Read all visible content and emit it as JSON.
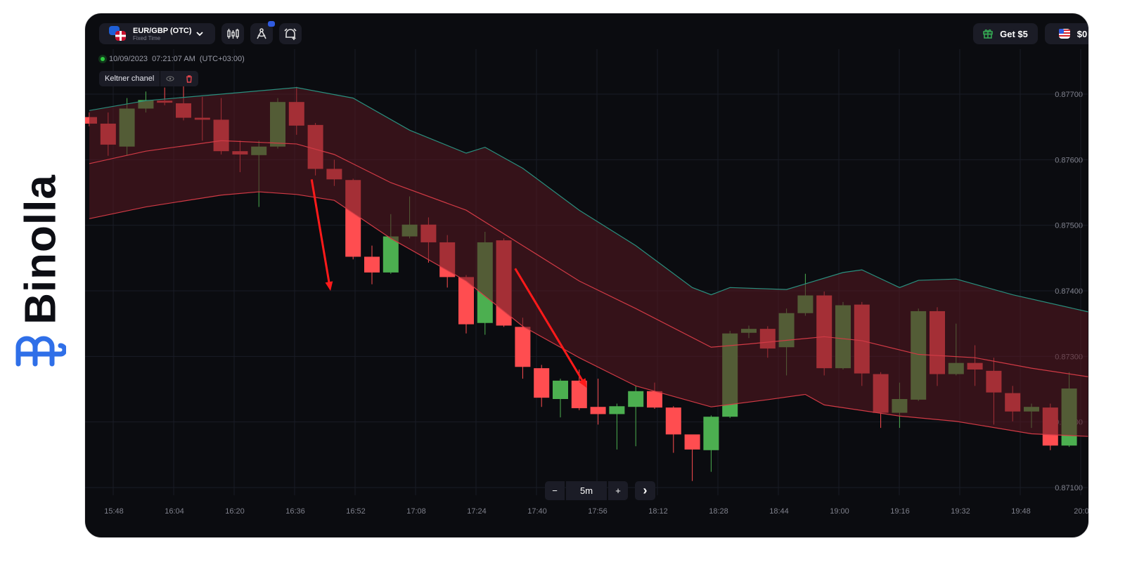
{
  "brand": {
    "name": "Binolla",
    "color": "#2f6fe8"
  },
  "header": {
    "asset_name": "EUR/GBP (OTC)",
    "asset_mode": "Fixed Time",
    "icons": [
      "eu-flag-icon",
      "uk-flag-icon",
      "chevron-down-icon",
      "candlestick-chart-icon",
      "drawing-compass-icon",
      "alarm-add-icon"
    ],
    "bonus_label": "Get $5",
    "balance": "$0"
  },
  "timestamp": {
    "date": "10/09/2023",
    "time": "07:21:07 AM",
    "tz": "(UTC+03:00)"
  },
  "indicator": {
    "label": "Keltner chanel"
  },
  "zoom_controls": {
    "minus": "−",
    "interval": "5m",
    "plus": "+",
    "next": "›"
  },
  "colors": {
    "bg": "#0b0c10",
    "up": "#4caf50",
    "down": "#ff4d50",
    "band_upper": "#2a8f7e",
    "band_lines": "#d03a45",
    "band_fill": "#5a1820",
    "arrow": "#ff1a1a"
  },
  "chart_data": {
    "type": "candlestick",
    "interval": "5m",
    "y_ticks": [
      "0.87700",
      "0.87600",
      "0.87500",
      "0.87400",
      "0.87300",
      "0.87200",
      "0.87100"
    ],
    "x_ticks": [
      "15:48",
      "16:04",
      "16:20",
      "16:36",
      "16:52",
      "17:08",
      "17:24",
      "17:40",
      "17:56",
      "18:12",
      "18:28",
      "18:44",
      "19:00",
      "19:16",
      "19:32",
      "19:48",
      "20:0"
    ],
    "grid": true,
    "start_time": "15:40",
    "candles": [
      [
        0.87665,
        0.87672,
        0.87651,
        0.87655
      ],
      [
        0.87655,
        0.87672,
        0.87606,
        0.87623
      ],
      [
        0.8762,
        0.87694,
        0.87606,
        0.87678
      ],
      [
        0.87678,
        0.87704,
        0.87672,
        0.87691
      ],
      [
        0.8769,
        0.8771,
        0.87683,
        0.87687
      ],
      [
        0.87686,
        0.87713,
        0.8766,
        0.87664
      ],
      [
        0.87664,
        0.87696,
        0.87629,
        0.87661
      ],
      [
        0.87661,
        0.87694,
        0.87608,
        0.87613
      ],
      [
        0.87613,
        0.87629,
        0.87581,
        0.87608
      ],
      [
        0.87607,
        0.87629,
        0.87528,
        0.8762
      ],
      [
        0.8762,
        0.87694,
        0.87617,
        0.87688
      ],
      [
        0.87688,
        0.87711,
        0.87638,
        0.87652
      ],
      [
        0.87653,
        0.87656,
        0.87576,
        0.87586
      ],
      [
        0.87586,
        0.876,
        0.8756,
        0.8757
      ],
      [
        0.87569,
        0.87571,
        0.87448,
        0.87452
      ],
      [
        0.87452,
        0.87469,
        0.8741,
        0.87428
      ],
      [
        0.87428,
        0.87517,
        0.87426,
        0.87483
      ],
      [
        0.87483,
        0.87544,
        0.8748,
        0.87501
      ],
      [
        0.87501,
        0.87512,
        0.87443,
        0.87474
      ],
      [
        0.87474,
        0.87485,
        0.87405,
        0.87421
      ],
      [
        0.87421,
        0.87424,
        0.87335,
        0.87349
      ],
      [
        0.87351,
        0.8749,
        0.87333,
        0.87474
      ],
      [
        0.87477,
        0.8748,
        0.87345,
        0.87347
      ],
      [
        0.87345,
        0.87359,
        0.87266,
        0.87284
      ],
      [
        0.87282,
        0.87287,
        0.87223,
        0.87237
      ],
      [
        0.87235,
        0.87266,
        0.87207,
        0.87263
      ],
      [
        0.87263,
        0.8728,
        0.87218,
        0.87221
      ],
      [
        0.87223,
        0.87266,
        0.87196,
        0.87212
      ],
      [
        0.87212,
        0.87228,
        0.87158,
        0.87224
      ],
      [
        0.87223,
        0.87255,
        0.87163,
        0.87247
      ],
      [
        0.87247,
        0.8726,
        0.8722,
        0.87222
      ],
      [
        0.87222,
        0.87224,
        0.87153,
        0.87181
      ],
      [
        0.87181,
        0.8718,
        0.8711,
        0.87158
      ],
      [
        0.87157,
        0.8721,
        0.87124,
        0.87208
      ],
      [
        0.87208,
        0.87339,
        0.87206,
        0.87335
      ],
      [
        0.87336,
        0.87347,
        0.87328,
        0.87342
      ],
      [
        0.87342,
        0.87346,
        0.87298,
        0.87312
      ],
      [
        0.87314,
        0.87373,
        0.87271,
        0.87366
      ],
      [
        0.87366,
        0.87426,
        0.87362,
        0.87393
      ],
      [
        0.87393,
        0.87399,
        0.87271,
        0.87282
      ],
      [
        0.87282,
        0.87383,
        0.8728,
        0.87378
      ],
      [
        0.87379,
        0.87383,
        0.87255,
        0.87274
      ],
      [
        0.87273,
        0.87276,
        0.87191,
        0.87214
      ],
      [
        0.87214,
        0.8726,
        0.87191,
        0.87235
      ],
      [
        0.87234,
        0.87373,
        0.87232,
        0.87369
      ],
      [
        0.87369,
        0.87375,
        0.87255,
        0.87273
      ],
      [
        0.87273,
        0.8735,
        0.87271,
        0.8729
      ],
      [
        0.8729,
        0.87317,
        0.87255,
        0.8728
      ],
      [
        0.87278,
        0.87298,
        0.87196,
        0.87245
      ],
      [
        0.87244,
        0.87255,
        0.87201,
        0.87216
      ],
      [
        0.87216,
        0.87228,
        0.87191,
        0.87223
      ],
      [
        0.87222,
        0.87228,
        0.87157,
        0.87164
      ],
      [
        0.87164,
        0.87276,
        0.87162,
        0.87251
      ]
    ],
    "keltner": {
      "upper": [
        [
          "15:40",
          0.87675
        ],
        [
          "15:55",
          0.8769
        ],
        [
          "16:15",
          0.877
        ],
        [
          "16:35",
          0.8771
        ],
        [
          "16:50",
          0.87694
        ],
        [
          "17:05",
          0.87645
        ],
        [
          "17:20",
          0.8761
        ],
        [
          "17:25",
          0.87619
        ],
        [
          "17:35",
          0.87587
        ],
        [
          "17:50",
          0.87523
        ],
        [
          "18:05",
          0.87469
        ],
        [
          "18:20",
          0.87405
        ],
        [
          "18:25",
          0.87394
        ],
        [
          "18:30",
          0.87405
        ],
        [
          "18:45",
          0.87402
        ],
        [
          "19:00",
          0.87428
        ],
        [
          "19:05",
          0.87432
        ],
        [
          "19:15",
          0.87405
        ],
        [
          "19:20",
          0.87416
        ],
        [
          "19:30",
          0.87418
        ],
        [
          "19:45",
          0.87394
        ],
        [
          "20:05",
          0.87368
        ]
      ],
      "middle": [
        [
          "15:40",
          0.87594
        ],
        [
          "15:55",
          0.87613
        ],
        [
          "16:15",
          0.87629
        ],
        [
          "16:35",
          0.87624
        ],
        [
          "16:45",
          0.87608
        ],
        [
          "17:00",
          0.87565
        ],
        [
          "17:20",
          0.87523
        ],
        [
          "17:35",
          0.87469
        ],
        [
          "17:50",
          0.87415
        ],
        [
          "18:05",
          0.87373
        ],
        [
          "18:25",
          0.87314
        ],
        [
          "18:35",
          0.87319
        ],
        [
          "18:55",
          0.8733
        ],
        [
          "19:05",
          0.87324
        ],
        [
          "19:20",
          0.87303
        ],
        [
          "19:35",
          0.87298
        ],
        [
          "19:50",
          0.87282
        ],
        [
          "20:05",
          0.87269
        ]
      ],
      "lower": [
        [
          "15:40",
          0.8751
        ],
        [
          "15:55",
          0.87528
        ],
        [
          "16:15",
          0.87546
        ],
        [
          "16:25",
          0.87551
        ],
        [
          "16:35",
          0.87547
        ],
        [
          "16:45",
          0.87538
        ],
        [
          "17:00",
          0.8748
        ],
        [
          "17:20",
          0.87415
        ],
        [
          "17:35",
          0.87346
        ],
        [
          "17:50",
          0.87298
        ],
        [
          "18:05",
          0.87255
        ],
        [
          "18:25",
          0.87223
        ],
        [
          "18:40",
          0.87234
        ],
        [
          "18:50",
          0.87242
        ],
        [
          "18:55",
          0.87226
        ],
        [
          "19:15",
          0.87209
        ],
        [
          "19:30",
          0.87201
        ],
        [
          "19:50",
          0.87182
        ],
        [
          "20:05",
          0.87178
        ]
      ]
    },
    "annotations": [
      {
        "type": "arrow",
        "from": [
          "16:39",
          0.8757
        ],
        "to": [
          "16:44",
          0.874
        ]
      },
      {
        "type": "arrow",
        "from": [
          "17:33",
          0.87434
        ],
        "to": [
          "17:52",
          0.87252
        ]
      }
    ]
  }
}
